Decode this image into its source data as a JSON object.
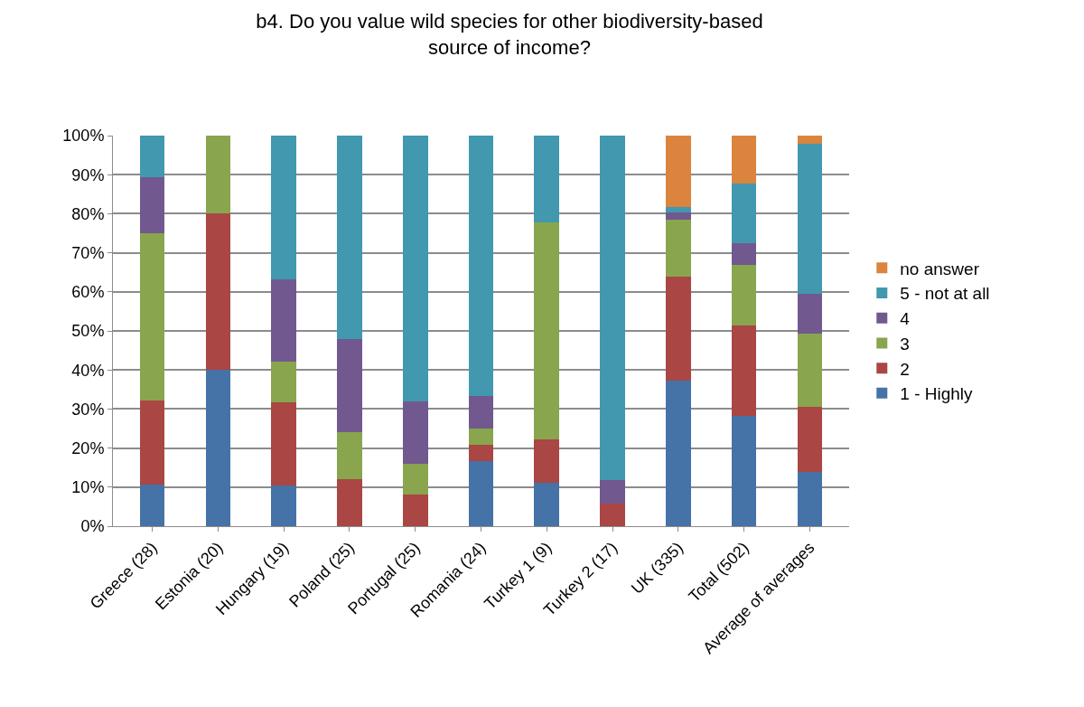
{
  "chart_data": {
    "type": "bar",
    "title": "b4. Do you value wild species for other biodiversity-based source of income?",
    "categories": [
      "Greece (28)",
      "Estonia (20)",
      "Hungary (19)",
      "Poland (25)",
      "Portugal (25)",
      "Romania (24)",
      "Turkey 1 (9)",
      "Turkey 2 (17)",
      "UK (335)",
      "Total (502)",
      "Average of averages"
    ],
    "stacked": true,
    "series": [
      {
        "name": "1 - Highly",
        "color": "#4572a7",
        "values": [
          10.7,
          40,
          10.5,
          0,
          0,
          16.7,
          11.1,
          0,
          37.2,
          28.3,
          13.9
        ]
      },
      {
        "name": "2",
        "color": "#aa4643",
        "values": [
          21.4,
          40,
          21.1,
          12,
          8,
          4.2,
          11.1,
          5.9,
          26.7,
          23.0,
          16.7
        ]
      },
      {
        "name": "3",
        "color": "#89a54e",
        "values": [
          42.9,
          20,
          10.5,
          12,
          8,
          4.2,
          55.6,
          0,
          14.5,
          15.5,
          18.6
        ]
      },
      {
        "name": "4",
        "color": "#71588f",
        "values": [
          14.3,
          0,
          21.1,
          24,
          16,
          8.3,
          0,
          5.9,
          2.0,
          5.7,
          10.3
        ]
      },
      {
        "name": "5 - not at all",
        "color": "#4198af",
        "values": [
          10.7,
          0,
          36.8,
          52,
          68,
          66.7,
          22.2,
          88.2,
          1.4,
          15.3,
          38.5
        ]
      },
      {
        "name": "no answer",
        "color": "#db843d",
        "values": [
          0,
          0,
          0,
          0,
          0,
          0,
          0,
          0,
          18.2,
          12.2,
          2.0
        ]
      }
    ],
    "ylim": [
      0,
      100
    ],
    "yticks": [
      {
        "value": 0,
        "label": "0%"
      },
      {
        "value": 10,
        "label": "10%"
      },
      {
        "value": 20,
        "label": "20%"
      },
      {
        "value": 30,
        "label": "30%"
      },
      {
        "value": 40,
        "label": "40%"
      },
      {
        "value": 50,
        "label": "50%"
      },
      {
        "value": 60,
        "label": "60%"
      },
      {
        "value": 70,
        "label": "70%"
      },
      {
        "value": 80,
        "label": "80%"
      },
      {
        "value": 90,
        "label": "90%"
      },
      {
        "value": 100,
        "label": "100%"
      }
    ],
    "grid": "y",
    "legend": "right"
  }
}
